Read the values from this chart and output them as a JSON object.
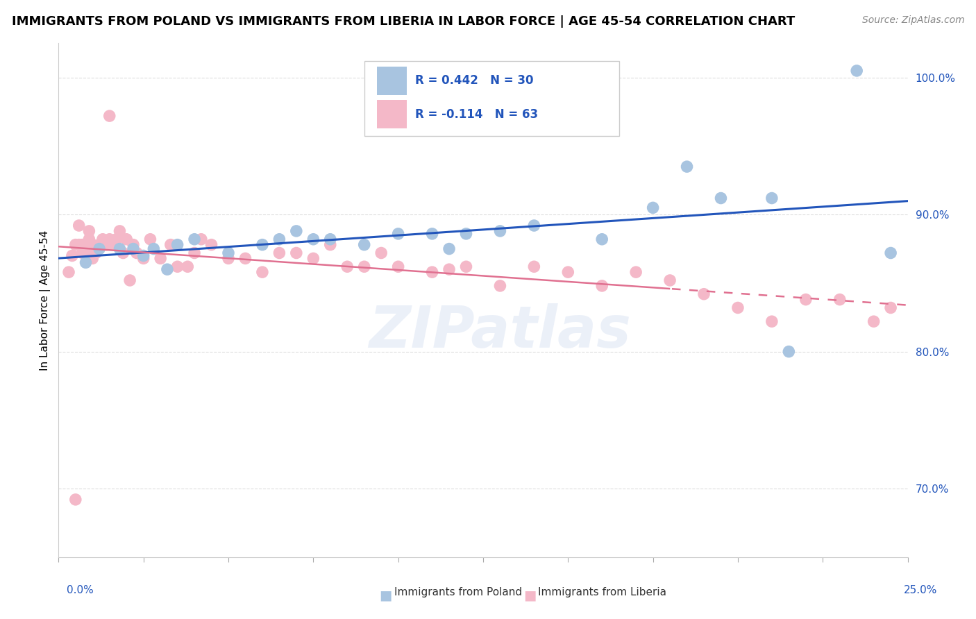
{
  "title": "IMMIGRANTS FROM POLAND VS IMMIGRANTS FROM LIBERIA IN LABOR FORCE | AGE 45-54 CORRELATION CHART",
  "source": "Source: ZipAtlas.com",
  "ylabel": "In Labor Force | Age 45-54",
  "legend_poland": "R = 0.442   N = 30",
  "legend_liberia": "R = -0.114   N = 63",
  "legend_label_poland": "Immigrants from Poland",
  "legend_label_liberia": "Immigrants from Liberia",
  "poland_color": "#a8c4e0",
  "liberia_color": "#f4b8c8",
  "poland_line_color": "#2255bb",
  "liberia_line_color": "#e07090",
  "watermark": "ZIPatlas",
  "xlim": [
    0.0,
    0.25
  ],
  "ylim": [
    0.65,
    1.025
  ],
  "poland_scatter_x": [
    0.008,
    0.012,
    0.018,
    0.022,
    0.025,
    0.028,
    0.032,
    0.035,
    0.04,
    0.05,
    0.06,
    0.065,
    0.07,
    0.075,
    0.08,
    0.09,
    0.1,
    0.11,
    0.115,
    0.12,
    0.13,
    0.14,
    0.16,
    0.175,
    0.185,
    0.195,
    0.21,
    0.215,
    0.235,
    0.245
  ],
  "poland_scatter_y": [
    0.865,
    0.875,
    0.875,
    0.875,
    0.87,
    0.875,
    0.86,
    0.878,
    0.882,
    0.872,
    0.878,
    0.882,
    0.888,
    0.882,
    0.882,
    0.878,
    0.886,
    0.886,
    0.875,
    0.886,
    0.888,
    0.892,
    0.882,
    0.905,
    0.935,
    0.912,
    0.912,
    0.8,
    1.005,
    0.872
  ],
  "liberia_scatter_x": [
    0.003,
    0.004,
    0.005,
    0.006,
    0.006,
    0.007,
    0.007,
    0.008,
    0.009,
    0.009,
    0.01,
    0.01,
    0.011,
    0.012,
    0.013,
    0.014,
    0.015,
    0.015,
    0.016,
    0.017,
    0.018,
    0.019,
    0.02,
    0.021,
    0.022,
    0.023,
    0.025,
    0.027,
    0.03,
    0.033,
    0.035,
    0.038,
    0.04,
    0.042,
    0.045,
    0.05,
    0.055,
    0.06,
    0.065,
    0.07,
    0.075,
    0.08,
    0.085,
    0.09,
    0.095,
    0.1,
    0.11,
    0.115,
    0.12,
    0.13,
    0.14,
    0.15,
    0.16,
    0.17,
    0.18,
    0.19,
    0.2,
    0.21,
    0.22,
    0.23,
    0.24,
    0.245,
    0.005
  ],
  "liberia_scatter_y": [
    0.858,
    0.87,
    0.878,
    0.878,
    0.892,
    0.872,
    0.878,
    0.872,
    0.882,
    0.888,
    0.868,
    0.878,
    0.872,
    0.878,
    0.882,
    0.878,
    0.972,
    0.882,
    0.878,
    0.882,
    0.888,
    0.872,
    0.882,
    0.852,
    0.878,
    0.872,
    0.868,
    0.882,
    0.868,
    0.878,
    0.862,
    0.862,
    0.872,
    0.882,
    0.878,
    0.868,
    0.868,
    0.858,
    0.872,
    0.872,
    0.868,
    0.878,
    0.862,
    0.862,
    0.872,
    0.862,
    0.858,
    0.86,
    0.862,
    0.848,
    0.862,
    0.858,
    0.848,
    0.858,
    0.852,
    0.842,
    0.832,
    0.822,
    0.838,
    0.838,
    0.822,
    0.832,
    0.692
  ],
  "poland_r": 0.442,
  "liberia_r": -0.114,
  "yticks": [
    0.7,
    0.8,
    0.9,
    1.0
  ],
  "ytick_labels": [
    "70.0%",
    "80.0%",
    "90.0%",
    "100.0%"
  ],
  "xtick_label_left": "0.0%",
  "xtick_label_right": "25.0%",
  "grid_color": "#dddddd",
  "title_fontsize": 13,
  "tick_fontsize": 11,
  "label_fontsize": 11
}
